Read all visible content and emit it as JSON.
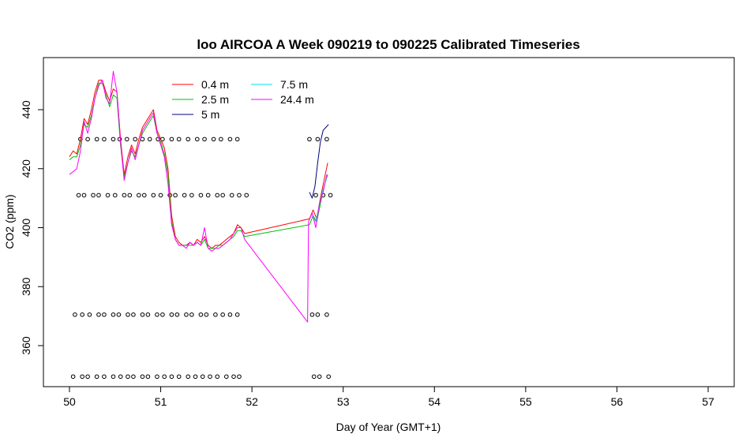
{
  "chart_data": {
    "type": "line",
    "title": "loo AIRCOA A  Week 090219 to 090225  Calibrated Timeseries",
    "xlabel": "Day of Year (GMT+1)",
    "ylabel": "CO2 (ppm)",
    "xlim": [
      50,
      57
    ],
    "ylim": [
      350,
      455
    ],
    "x_ticks": [
      50,
      51,
      52,
      53,
      54,
      55,
      56,
      57
    ],
    "y_ticks": [
      360,
      380,
      400,
      420,
      440
    ],
    "legend_placement": "top-left",
    "grid": false,
    "series": [
      {
        "name": "0.4 m",
        "color": "#ff0000",
        "x": [
          50.0,
          50.04,
          50.08,
          50.12,
          50.16,
          50.2,
          50.24,
          50.28,
          50.32,
          50.36,
          50.4,
          50.44,
          50.48,
          50.52,
          50.56,
          50.6,
          50.64,
          50.68,
          50.72,
          50.76,
          50.8,
          50.84,
          50.88,
          50.92,
          50.96,
          51.0,
          51.04,
          51.08,
          51.12,
          51.16,
          51.2,
          51.24,
          51.28,
          51.32,
          51.36,
          51.4,
          51.44,
          51.48,
          51.52,
          51.56,
          51.6,
          51.64,
          51.68,
          51.72,
          51.76,
          51.8,
          51.84,
          51.88,
          51.92,
          52.63,
          52.67,
          52.71,
          52.75,
          52.79,
          52.83
        ],
        "values": [
          424,
          426,
          425,
          430,
          437,
          435,
          440,
          446,
          450,
          450,
          446,
          443,
          447,
          446,
          430,
          418,
          424,
          428,
          425,
          430,
          434,
          436,
          438,
          440,
          433,
          430,
          427,
          420,
          404,
          397,
          395,
          394,
          394,
          395,
          394,
          396,
          395,
          397,
          394,
          393,
          394,
          394,
          395,
          396,
          397,
          398,
          401,
          400,
          398,
          403,
          406,
          403,
          410,
          416,
          422
        ]
      },
      {
        "name": "2.5 m",
        "color": "#00c000",
        "x": [
          50.0,
          50.04,
          50.08,
          50.12,
          50.16,
          50.2,
          50.24,
          50.28,
          50.32,
          50.36,
          50.4,
          50.44,
          50.48,
          50.52,
          50.56,
          50.6,
          50.64,
          50.68,
          50.72,
          50.76,
          50.8,
          50.84,
          50.88,
          50.92,
          50.96,
          51.0,
          51.04,
          51.08,
          51.12,
          51.16,
          51.2,
          51.24,
          51.28,
          51.32,
          51.36,
          51.4,
          51.44,
          51.48,
          51.52,
          51.56,
          51.6,
          51.64,
          51.68,
          51.72,
          51.76,
          51.8,
          51.84,
          51.88,
          51.92,
          52.63,
          52.67,
          52.71,
          52.75,
          52.79,
          52.83
        ],
        "values": [
          423,
          424,
          424,
          428,
          435,
          434,
          438,
          444,
          449,
          449,
          445,
          441,
          445,
          444,
          428,
          417,
          422,
          426,
          424,
          428,
          432,
          434,
          436,
          438,
          432,
          429,
          425,
          418,
          402,
          396,
          394,
          394,
          394,
          394,
          394,
          395,
          394,
          396,
          393,
          393,
          393,
          394,
          394,
          395,
          396,
          397,
          399,
          399,
          397,
          401,
          404,
          402,
          408,
          414,
          418
        ]
      },
      {
        "name": "5 m",
        "color": "#000080",
        "x": [
          52.63,
          52.66,
          52.69,
          52.72,
          52.75,
          52.78,
          52.81,
          52.84
        ],
        "values": [
          412,
          410,
          414,
          422,
          429,
          433,
          434,
          435
        ]
      },
      {
        "name": "7.5 m",
        "color": "#00e0e0",
        "x": [
          52.66,
          52.7,
          52.74,
          52.78,
          52.82
        ],
        "values": [
          404,
          402,
          408,
          413,
          417
        ]
      },
      {
        "name": "24.4 m",
        "color": "#ff00ff",
        "x": [
          50.0,
          50.04,
          50.08,
          50.12,
          50.16,
          50.2,
          50.24,
          50.28,
          50.32,
          50.36,
          50.4,
          50.44,
          50.48,
          50.52,
          50.56,
          50.6,
          50.64,
          50.68,
          50.72,
          50.76,
          50.8,
          50.84,
          50.88,
          50.92,
          50.96,
          51.0,
          51.04,
          51.08,
          51.12,
          51.16,
          51.2,
          51.24,
          51.28,
          51.32,
          51.36,
          51.4,
          51.44,
          51.48,
          51.52,
          51.56,
          51.6,
          51.64,
          51.68,
          51.72,
          51.76,
          51.8,
          51.84,
          51.88,
          51.92,
          52.61,
          52.62,
          52.66,
          52.7,
          52.74,
          52.78,
          52.82
        ],
        "values": [
          418,
          419,
          420,
          426,
          436,
          432,
          437,
          444,
          448,
          450,
          444,
          442,
          453,
          446,
          429,
          416,
          422,
          427,
          423,
          428,
          433,
          435,
          437,
          439,
          432,
          428,
          424,
          415,
          401,
          396,
          394,
          394,
          393,
          395,
          394,
          395,
          394,
          400,
          393,
          392,
          393,
          393,
          394,
          395,
          396,
          398,
          400,
          400,
          396,
          368,
          402,
          405,
          400,
          408,
          412,
          418
        ]
      }
    ],
    "markers": {
      "symbol": "circle",
      "color": "#000000",
      "rows": [
        {
          "y": 430,
          "x": [
            50.12,
            50.2,
            50.3,
            50.38,
            50.48,
            50.55,
            50.63,
            50.72,
            50.8,
            50.88,
            50.97,
            51.02,
            51.12,
            51.2,
            51.3,
            51.4,
            51.48,
            51.58,
            51.66,
            51.76,
            51.84,
            52.63,
            52.72,
            52.82
          ]
        },
        {
          "y": 411,
          "x": [
            50.1,
            50.16,
            50.26,
            50.32,
            50.42,
            50.5,
            50.6,
            50.66,
            50.76,
            50.82,
            50.92,
            51.0,
            51.1,
            51.16,
            51.26,
            51.34,
            51.44,
            51.52,
            51.62,
            51.68,
            51.78,
            51.86,
            51.94,
            52.7,
            52.78,
            52.86
          ]
        },
        {
          "y": 370.5,
          "x": [
            50.06,
            50.14,
            50.22,
            50.32,
            50.38,
            50.48,
            50.54,
            50.64,
            50.7,
            50.8,
            50.86,
            50.96,
            51.02,
            51.12,
            51.18,
            51.28,
            51.34,
            51.44,
            51.5,
            51.6,
            51.68,
            51.76,
            51.84,
            52.66,
            52.72,
            52.82
          ]
        },
        {
          "y": 349.5,
          "x": [
            50.04,
            50.14,
            50.2,
            50.3,
            50.38,
            50.48,
            50.56,
            50.64,
            50.7,
            50.8,
            50.86,
            50.96,
            51.04,
            51.12,
            51.2,
            51.3,
            51.38,
            51.46,
            51.54,
            51.62,
            51.72,
            51.8,
            51.86,
            52.68,
            52.74,
            52.84
          ]
        }
      ]
    }
  }
}
